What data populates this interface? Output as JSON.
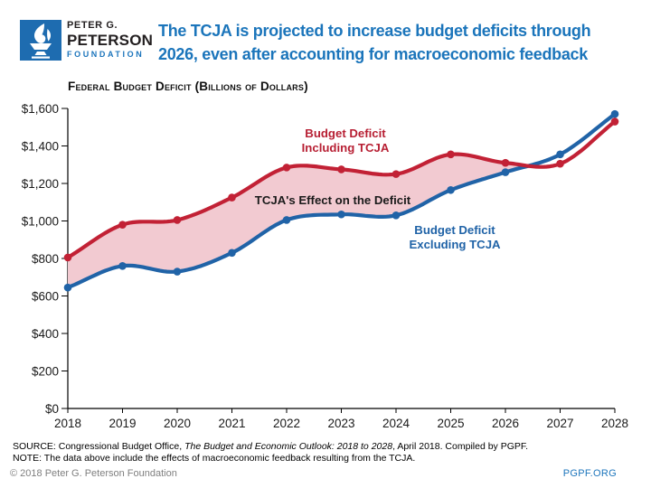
{
  "header": {
    "logo": {
      "line1": "PETER G.",
      "line2": "PETERSON",
      "line3": "FOUNDATION",
      "box_color": "#1E6CB0"
    },
    "title": [
      "The TCJA is projected to increase budget deficits through",
      "2026, even after accounting for macroeconomic feedback"
    ],
    "title_color": "#1B75BB"
  },
  "chart_data": {
    "type": "line",
    "title": "Federal Budget Deficit (Billions of Dollars)",
    "x": [
      2018,
      2019,
      2020,
      2021,
      2022,
      2023,
      2024,
      2025,
      2026,
      2027,
      2028
    ],
    "xticklabels": [
      "2018",
      "2019",
      "2020",
      "2021",
      "2022",
      "2023",
      "2024",
      "2025",
      "2026",
      "2027",
      "2028"
    ],
    "ylim": [
      0,
      1600
    ],
    "ytick_step": 200,
    "yticklabels": [
      "$0",
      "$200",
      "$400",
      "$600",
      "$800",
      "$1,000",
      "$1,200",
      "$1,400",
      "$1,600"
    ],
    "grid": false,
    "legend_position": "inline-annotations",
    "series": [
      {
        "id": "including-tcja",
        "name": "Budget Deficit Including TCJA",
        "color": "#C22135",
        "values": [
          805,
          980,
          1005,
          1125,
          1285,
          1275,
          1250,
          1355,
          1310,
          1305,
          1530
        ]
      },
      {
        "id": "excluding-tcja",
        "name": "Budget Deficit Excluding TCJA",
        "color": "#2063A7",
        "values": [
          645,
          760,
          730,
          830,
          1005,
          1035,
          1030,
          1165,
          1260,
          1355,
          1570
        ]
      }
    ],
    "fill_between": {
      "label": "TCJA's Effect on the Deficit",
      "color": "#F2CAD1",
      "applies": "where deficit including TCJA exceeds deficit excluding TCJA (2018 until lines cross between 2026 and 2027)"
    },
    "annotations": [
      {
        "id": "label-including-tcja",
        "lines": [
          "Budget Deficit",
          "Including TCJA"
        ],
        "x": 382,
        "y": 152,
        "color": "#B71F33"
      },
      {
        "id": "label-effect-on-deficit",
        "lines": [
          "TCJA's Effect on the Deficit"
        ],
        "x": 368,
        "y": 226,
        "color": "#1A1A1A"
      },
      {
        "id": "label-excluding-tcja",
        "lines": [
          "Budget Deficit",
          "Excluding TCJA"
        ],
        "x": 503,
        "y": 259,
        "color": "#2063A7"
      }
    ]
  },
  "source": {
    "prefix": "SOURCE: Congressional Budget Office, ",
    "italic": "The Budget and Economic Outlook: 2018 to 2028",
    "suffix": ", April 2018. Compiled by PGPF.",
    "note": "NOTE: The data above include the effects of macroeconomic feedback resulting from the TCJA."
  },
  "footer": {
    "copyright": "© 2018 Peter G. Peterson Foundation",
    "site": "PGPF.ORG"
  }
}
